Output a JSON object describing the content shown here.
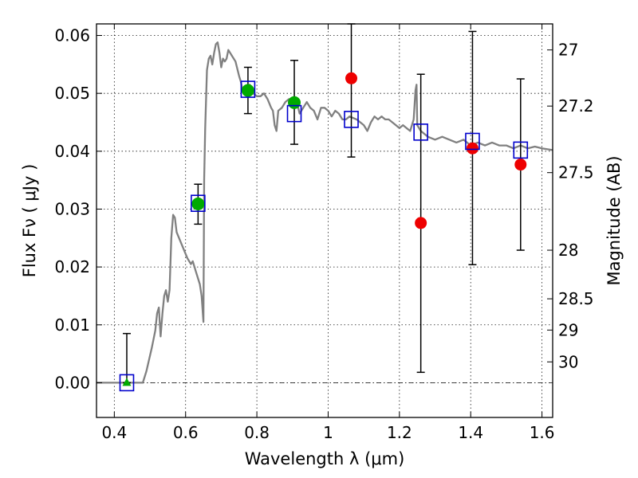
{
  "chart_data": {
    "type": "scatter",
    "xlabel": "Wavelength  λ (μm)",
    "ylabel": "Flux  Fν  ( μJy )",
    "y2label": "Magnitude (AB)",
    "xlim": [
      0.35,
      1.63
    ],
    "ylim": [
      -0.006,
      0.062
    ],
    "grid": true,
    "x_ticks": [
      0.4,
      0.6,
      0.8,
      1.0,
      1.2,
      1.4,
      1.6
    ],
    "x_tick_labels": [
      "0.4",
      "0.6",
      "0.8",
      "1",
      "1.2",
      "1.4",
      "1.6"
    ],
    "y_ticks": [
      0.0,
      0.01,
      0.02,
      0.03,
      0.04,
      0.05,
      0.06
    ],
    "y_tick_labels": [
      "0.00",
      "0.01",
      "0.02",
      "0.03",
      "0.04",
      "0.05",
      "0.06"
    ],
    "y2_ticks": [
      {
        "label": "27",
        "flux": 0.0575
      },
      {
        "label": "27.2",
        "flux": 0.0478
      },
      {
        "label": "27.5",
        "flux": 0.0363
      },
      {
        "label": "28",
        "flux": 0.0229
      },
      {
        "label": "28.5",
        "flux": 0.0145
      },
      {
        "label": "29",
        "flux": 0.0091
      },
      {
        "label": "30",
        "flux": 0.0036
      }
    ],
    "model_sed": {
      "color": "#808080",
      "points": [
        [
          0.35,
          0.0
        ],
        [
          0.48,
          0.0
        ],
        [
          0.49,
          0.002
        ],
        [
          0.505,
          0.006
        ],
        [
          0.515,
          0.009
        ],
        [
          0.52,
          0.012
        ],
        [
          0.525,
          0.013
        ],
        [
          0.53,
          0.008
        ],
        [
          0.535,
          0.012
        ],
        [
          0.54,
          0.015
        ],
        [
          0.545,
          0.016
        ],
        [
          0.55,
          0.014
        ],
        [
          0.555,
          0.016
        ],
        [
          0.56,
          0.025
        ],
        [
          0.565,
          0.029
        ],
        [
          0.57,
          0.0285
        ],
        [
          0.575,
          0.026
        ],
        [
          0.585,
          0.0245
        ],
        [
          0.595,
          0.023
        ],
        [
          0.605,
          0.0215
        ],
        [
          0.615,
          0.0205
        ],
        [
          0.62,
          0.021
        ],
        [
          0.63,
          0.019
        ],
        [
          0.64,
          0.017
        ],
        [
          0.645,
          0.015
        ],
        [
          0.65,
          0.0105
        ],
        [
          0.652,
          0.035
        ],
        [
          0.655,
          0.044
        ],
        [
          0.66,
          0.054
        ],
        [
          0.665,
          0.056
        ],
        [
          0.67,
          0.0565
        ],
        [
          0.675,
          0.055
        ],
        [
          0.68,
          0.057
        ],
        [
          0.685,
          0.0585
        ],
        [
          0.69,
          0.0588
        ],
        [
          0.695,
          0.057
        ],
        [
          0.7,
          0.0545
        ],
        [
          0.705,
          0.056
        ],
        [
          0.71,
          0.0555
        ],
        [
          0.715,
          0.056
        ],
        [
          0.72,
          0.0575
        ],
        [
          0.73,
          0.0565
        ],
        [
          0.74,
          0.0555
        ],
        [
          0.75,
          0.053
        ],
        [
          0.755,
          0.052
        ],
        [
          0.76,
          0.0505
        ],
        [
          0.77,
          0.05
        ],
        [
          0.78,
          0.0515
        ],
        [
          0.79,
          0.05
        ],
        [
          0.8,
          0.0495
        ],
        [
          0.81,
          0.0495
        ],
        [
          0.82,
          0.05
        ],
        [
          0.83,
          0.049
        ],
        [
          0.84,
          0.0475
        ],
        [
          0.845,
          0.047
        ],
        [
          0.85,
          0.0445
        ],
        [
          0.855,
          0.0435
        ],
        [
          0.86,
          0.047
        ],
        [
          0.87,
          0.0475
        ],
        [
          0.88,
          0.0485
        ],
        [
          0.89,
          0.049
        ],
        [
          0.9,
          0.048
        ],
        [
          0.91,
          0.049
        ],
        [
          0.92,
          0.0465
        ],
        [
          0.93,
          0.0475
        ],
        [
          0.94,
          0.0485
        ],
        [
          0.95,
          0.0475
        ],
        [
          0.96,
          0.047
        ],
        [
          0.97,
          0.0455
        ],
        [
          0.98,
          0.0475
        ],
        [
          0.99,
          0.0475
        ],
        [
          1.0,
          0.047
        ],
        [
          1.01,
          0.046
        ],
        [
          1.02,
          0.047
        ],
        [
          1.03,
          0.0465
        ],
        [
          1.04,
          0.0455
        ],
        [
          1.05,
          0.0455
        ],
        [
          1.06,
          0.046
        ],
        [
          1.08,
          0.0455
        ],
        [
          1.09,
          0.045
        ],
        [
          1.1,
          0.0445
        ],
        [
          1.11,
          0.0435
        ],
        [
          1.12,
          0.045
        ],
        [
          1.13,
          0.046
        ],
        [
          1.14,
          0.0455
        ],
        [
          1.15,
          0.046
        ],
        [
          1.16,
          0.0455
        ],
        [
          1.17,
          0.0455
        ],
        [
          1.18,
          0.045
        ],
        [
          1.19,
          0.0445
        ],
        [
          1.2,
          0.044
        ],
        [
          1.21,
          0.0445
        ],
        [
          1.22,
          0.044
        ],
        [
          1.23,
          0.0435
        ],
        [
          1.24,
          0.0455
        ],
        [
          1.245,
          0.0505
        ],
        [
          1.248,
          0.0515
        ],
        [
          1.25,
          0.0445
        ],
        [
          1.26,
          0.0435
        ],
        [
          1.27,
          0.043
        ],
        [
          1.28,
          0.0425
        ],
        [
          1.3,
          0.042
        ],
        [
          1.32,
          0.0425
        ],
        [
          1.34,
          0.042
        ],
        [
          1.36,
          0.0415
        ],
        [
          1.38,
          0.042
        ],
        [
          1.4,
          0.041
        ],
        [
          1.42,
          0.0415
        ],
        [
          1.44,
          0.041
        ],
        [
          1.46,
          0.0415
        ],
        [
          1.48,
          0.041
        ],
        [
          1.5,
          0.041
        ],
        [
          1.52,
          0.0405
        ],
        [
          1.54,
          0.041
        ],
        [
          1.56,
          0.0405
        ],
        [
          1.58,
          0.0408
        ],
        [
          1.6,
          0.0405
        ],
        [
          1.63,
          0.0402
        ]
      ]
    },
    "model_photometry": {
      "color": "#0000cc",
      "x": [
        0.435,
        0.635,
        0.775,
        0.905,
        1.065,
        1.26,
        1.405,
        1.54
      ],
      "y": [
        0.0,
        0.031,
        0.0507,
        0.0465,
        0.0455,
        0.0433,
        0.0417,
        0.0402
      ]
    },
    "detections": {
      "color": "#00aa00",
      "points": [
        {
          "x": 0.435,
          "y": 0.0,
          "yerr": [
            0.0,
            0.0085
          ],
          "marker": "triangle"
        },
        {
          "x": 0.635,
          "y": 0.0309,
          "yerr": [
            0.0274,
            0.0343
          ],
          "marker": "circle"
        },
        {
          "x": 0.775,
          "y": 0.0505,
          "yerr": [
            0.0465,
            0.0545
          ],
          "marker": "circle"
        },
        {
          "x": 0.905,
          "y": 0.0484,
          "yerr": [
            0.0412,
            0.0557
          ],
          "marker": "circle"
        }
      ]
    },
    "low_significance": {
      "color": "#ee0000",
      "points": [
        {
          "x": 1.065,
          "y": 0.0526,
          "yerr": [
            0.039,
            0.062
          ]
        },
        {
          "x": 1.26,
          "y": 0.0276,
          "yerr": [
            0.0018,
            0.0533
          ]
        },
        {
          "x": 1.405,
          "y": 0.0405,
          "yerr": [
            0.0204,
            0.0607
          ]
        },
        {
          "x": 1.54,
          "y": 0.0377,
          "yerr": [
            0.0229,
            0.0525
          ]
        }
      ]
    },
    "zero_line": {
      "y": 0.0
    }
  }
}
